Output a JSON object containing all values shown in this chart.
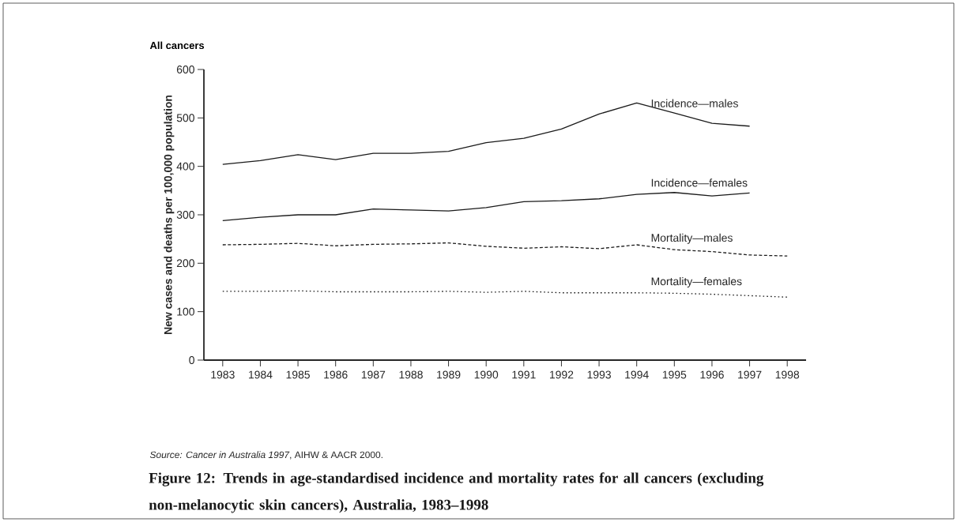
{
  "chart_data": {
    "type": "line",
    "title": "All cancers",
    "ylabel": "New cases and deaths per 100,000 population",
    "x": [
      1983,
      1984,
      1985,
      1986,
      1987,
      1988,
      1989,
      1990,
      1991,
      1992,
      1993,
      1994,
      1995,
      1996,
      1997,
      1998
    ],
    "series": [
      {
        "name": "Incidence—males",
        "color": "#1a1a1a",
        "line_style": "solid",
        "values": [
          404,
          412,
          424,
          414,
          427,
          427,
          431,
          449,
          458,
          477,
          508,
          531,
          510,
          489,
          483,
          null
        ]
      },
      {
        "name": "Incidence—females",
        "color": "#1a1a1a",
        "line_style": "solid",
        "values": [
          288,
          295,
          300,
          300,
          312,
          310,
          308,
          315,
          327,
          329,
          333,
          342,
          346,
          339,
          345,
          null
        ]
      },
      {
        "name": "Mortality—males",
        "color": "#1a1a1a",
        "line_style": "dashed",
        "values": [
          238,
          239,
          241,
          236,
          239,
          240,
          242,
          235,
          231,
          234,
          230,
          238,
          228,
          224,
          217,
          215
        ]
      },
      {
        "name": "Mortality—females",
        "color": "#1a1a1a",
        "line_style": "dotted",
        "values": [
          142,
          142,
          143,
          141,
          141,
          141,
          142,
          140,
          142,
          139,
          139,
          139,
          138,
          136,
          133,
          130
        ]
      }
    ],
    "xlim": [
      1982.5,
      1998.5
    ],
    "xticks": [
      1983,
      1984,
      1985,
      1986,
      1987,
      1988,
      1989,
      1990,
      1991,
      1992,
      1993,
      1994,
      1995,
      1996,
      1997,
      1998
    ],
    "ylim": [
      0,
      600
    ],
    "yticks": [
      0,
      100,
      200,
      300,
      400,
      500,
      600
    ],
    "grid": false,
    "legend": false,
    "marker": "none",
    "annotations": [
      "*Source:  Cancer in Australia 1997*, AIHW & AACR 2000.",
      "Figure 12: Trends in age-standardised incidence and mortality rates for all cancers (excluding non-melanocytic skin cancers), Australia, 1983–1998"
    ]
  }
}
